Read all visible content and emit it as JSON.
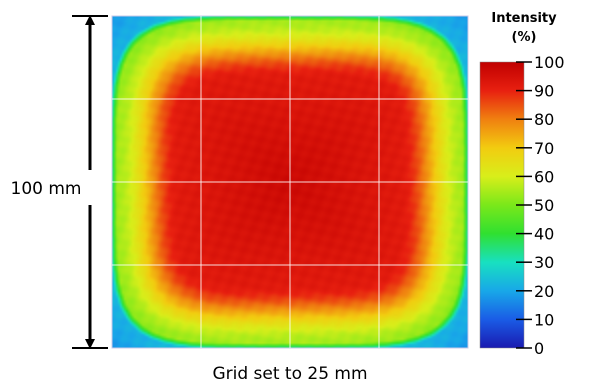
{
  "chart_data": {
    "type": "heatmap",
    "dimension_label": "100 mm",
    "caption": "Grid set to 25 mm",
    "colorbar": {
      "title_line1": "Intensity",
      "title_line2": "(%)",
      "range": [
        0,
        100
      ],
      "ticks": [
        "0",
        "10",
        "20",
        "30",
        "40",
        "50",
        "60",
        "70",
        "80",
        "90",
        "100"
      ]
    },
    "field": {
      "size_mm": 100,
      "grid_step_mm": 25,
      "center_intensity_pct": 97,
      "plateau_intensity_pct": 92,
      "edge_intensity_pct": 55,
      "corner_intensity_pct": 50,
      "border_intensity_pct": 25
    },
    "colorscale": [
      "#1a1ab0",
      "#1a5ce6",
      "#18a8e8",
      "#18e0c0",
      "#30e030",
      "#7ae81a",
      "#d8ee1a",
      "#f2cc10",
      "#f08010",
      "#e82010",
      "#c00000"
    ],
    "grid": true
  }
}
